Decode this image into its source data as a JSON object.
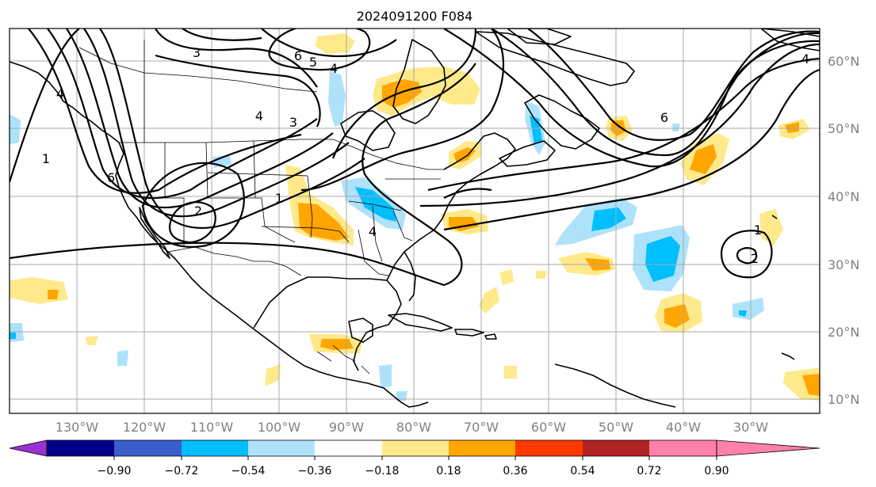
{
  "title": "2024091200 F084",
  "lon_labels": [
    "130°W",
    "120°W",
    "110°W",
    "100°W",
    "90°W",
    "80°W",
    "70°W",
    "60°W",
    "50°W",
    "40°W",
    "30°W"
  ],
  "lat_labels": [
    "60°N",
    "50°N",
    "40°N",
    "30°N",
    "20°N",
    "10°N"
  ],
  "colorbar": {
    "tick_labels": [
      "−0.90",
      "−0.72",
      "−0.54",
      "−0.36",
      "−0.18",
      "0.18",
      "0.36",
      "0.54",
      "0.72",
      "0.90"
    ],
    "colors": [
      "#9b30d0",
      "#00008b",
      "#3a5fcd",
      "#00bfff",
      "#aee2fa",
      "#ffffff",
      "#ffe98a",
      "#ffa500",
      "#ff3a00",
      "#b22222",
      "#ff80aa"
    ]
  },
  "fill_colors": {
    "light_blue": "#aee2fa",
    "blue": "#00bfff",
    "yellow": "#ffe98a",
    "orange": "#ffa500"
  },
  "contour_labels": [
    "3",
    "6",
    "5",
    "4",
    "4",
    "3",
    "4",
    "1",
    "6",
    "2",
    "1",
    "4",
    "4",
    "6",
    "1",
    "2"
  ]
}
